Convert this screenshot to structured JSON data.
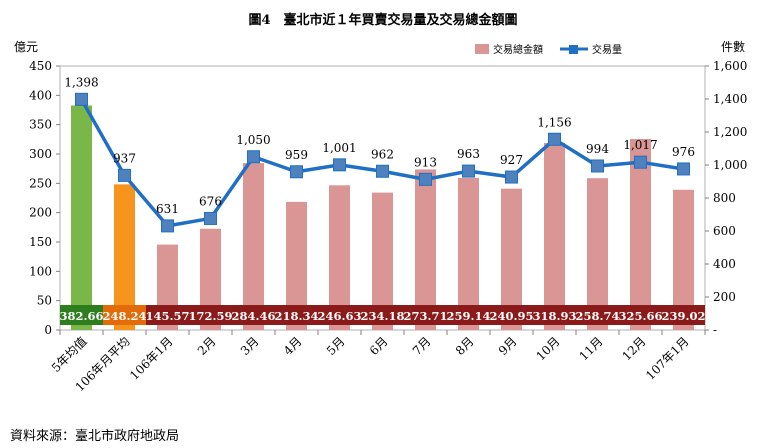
{
  "chart_data": {
    "type": "bar+line",
    "title": "圖4　臺北市近１年買賣交易量及交易總金額圖",
    "left_axis_label": "億元",
    "right_axis_label": "件數",
    "left_ylim": [
      0,
      450
    ],
    "left_ticks": [
      0,
      50,
      100,
      150,
      200,
      250,
      300,
      350,
      400,
      450
    ],
    "right_ylim": [
      0,
      1600
    ],
    "right_ticks": [
      "-",
      "200",
      "400",
      "600",
      "800",
      "1,000",
      "1,200",
      "1,400",
      "1,600"
    ],
    "categories": [
      "5年均值",
      "106年月平均",
      "106年1月",
      "2月",
      "3月",
      "4月",
      "5月",
      "6月",
      "7月",
      "8月",
      "9月",
      "10月",
      "11月",
      "12月",
      "107年1月"
    ],
    "series": [
      {
        "name": "交易總金額",
        "type": "bar",
        "axis": "left",
        "values": [
          382.66,
          248.24,
          145.57,
          172.59,
          284.46,
          218.34,
          246.63,
          234.18,
          273.71,
          259.14,
          240.95,
          318.93,
          258.74,
          325.66,
          239.02
        ],
        "labels": [
          "382.66",
          "248.24",
          "145.57",
          "172.59",
          "284.46",
          "218.34",
          "246.63",
          "234.18",
          "273.71",
          "259.14",
          "240.95",
          "318.93",
          "258.74",
          "325.66",
          "239.02"
        ],
        "colors": [
          "#7ab648",
          "#f7941d",
          "#d99694",
          "#d99694",
          "#d99694",
          "#d99694",
          "#d99694",
          "#d99694",
          "#d99694",
          "#d99694",
          "#d99694",
          "#d99694",
          "#d99694",
          "#d99694",
          "#d99694"
        ],
        "label_bg_colors": [
          "#2e7d1e",
          "#e36c0a",
          "#8b1a1a",
          "#8b1a1a",
          "#8b1a1a",
          "#8b1a1a",
          "#8b1a1a",
          "#8b1a1a",
          "#8b1a1a",
          "#8b1a1a",
          "#8b1a1a",
          "#8b1a1a",
          "#8b1a1a",
          "#8b1a1a",
          "#8b1a1a"
        ]
      },
      {
        "name": "交易量",
        "type": "line",
        "axis": "right",
        "values": [
          1398,
          937,
          631,
          676,
          1050,
          959,
          1001,
          962,
          913,
          963,
          927,
          1156,
          994,
          1017,
          976
        ],
        "labels": [
          "1,398",
          "937",
          "631",
          "676",
          "1,050",
          "959",
          "1,001",
          "962",
          "913",
          "963",
          "927",
          "1,156",
          "994",
          "1,017",
          "976"
        ],
        "color": "#1f6fc5"
      }
    ],
    "legend_position": "top-right",
    "source": "資料來源：臺北市政府地政局"
  }
}
